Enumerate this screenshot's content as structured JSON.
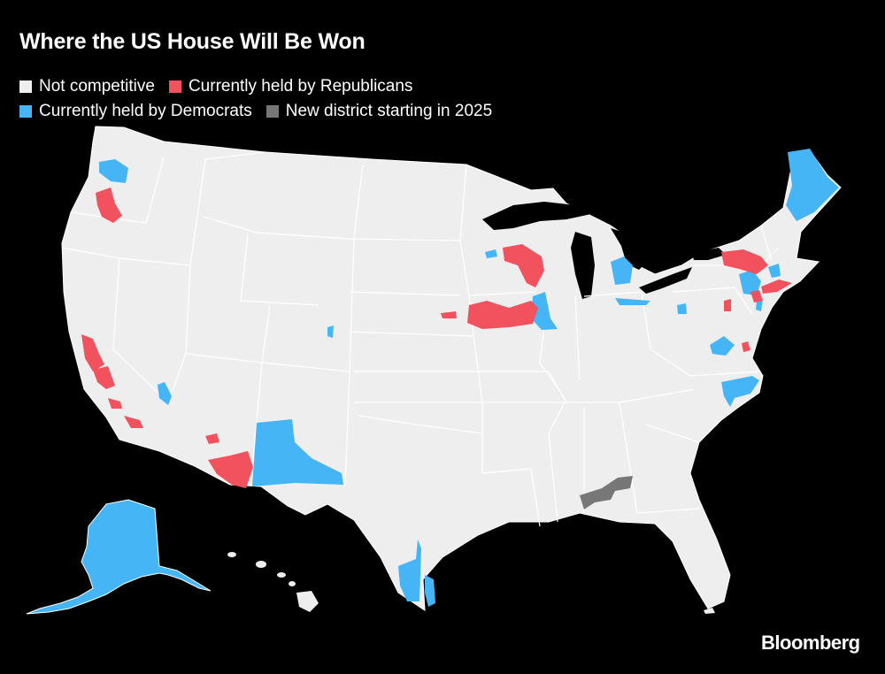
{
  "title": "Where the US House Will Be Won",
  "legend": [
    {
      "label": "Not competitive",
      "color": "#eeeeee"
    },
    {
      "label": "Currently held by Republicans",
      "color": "#f2515e"
    },
    {
      "label": "Currently held by Democrats",
      "color": "#45b5f5"
    },
    {
      "label": "New district starting in 2025",
      "color": "#777777"
    }
  ],
  "colors": {
    "background": "#000000",
    "land": "#eeeeee",
    "border": "#ffffff",
    "republican": "#f2515e",
    "democrat": "#45b5f5",
    "new_district": "#777777"
  },
  "source": "Bloomberg"
}
